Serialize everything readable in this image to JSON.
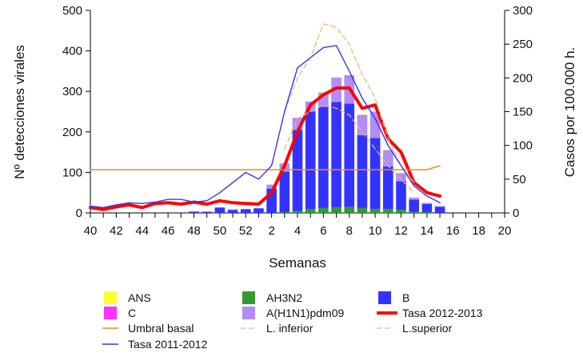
{
  "chart_data": {
    "type": "bar+line",
    "xlabel": "Semanas",
    "ylabel_left": "Nº detecciones virales",
    "ylabel_right": "Casos por 100.000 h.",
    "ylim_left": [
      0,
      500
    ],
    "ylim_right": [
      0,
      300
    ],
    "yticks_left": [
      0,
      100,
      200,
      300,
      400,
      500
    ],
    "yticks_right": [
      0,
      50,
      100,
      150,
      200,
      250,
      300
    ],
    "x_weeks": [
      "40",
      "41",
      "42",
      "43",
      "44",
      "45",
      "46",
      "47",
      "48",
      "49",
      "50",
      "51",
      "52",
      "1",
      "2",
      "3",
      "4",
      "5",
      "6",
      "7",
      "8",
      "9",
      "10",
      "11",
      "12",
      "13",
      "14",
      "15",
      "16",
      "17",
      "18",
      "19",
      "20"
    ],
    "x_tick_labels": [
      "40",
      "42",
      "44",
      "46",
      "48",
      "50",
      "52",
      "2",
      "4",
      "6",
      "8",
      "10",
      "12",
      "14",
      "16",
      "18",
      "20"
    ],
    "bar_series": [
      {
        "name": "ANS",
        "color": "#ffff33",
        "values": [
          0,
          0,
          0,
          0,
          0,
          0,
          0,
          0,
          0,
          0,
          0,
          0,
          0,
          0,
          0,
          0,
          0,
          1,
          1,
          1,
          1,
          1,
          1,
          1,
          1,
          0,
          0,
          0,
          0,
          0,
          0,
          0,
          0
        ]
      },
      {
        "name": "C",
        "color": "#ff33ff",
        "values": [
          0,
          0,
          0,
          0,
          0,
          0,
          0,
          0,
          0,
          0,
          0,
          0,
          0,
          0,
          0,
          0,
          0,
          0,
          0,
          0,
          0,
          0,
          0,
          0,
          0,
          0,
          0,
          0,
          0,
          0,
          0,
          0,
          0
        ]
      },
      {
        "name": "AH3N2",
        "color": "#339933",
        "values": [
          0,
          0,
          0,
          0,
          0,
          0,
          0,
          0,
          0,
          0,
          0,
          0,
          0,
          0,
          0,
          2,
          5,
          10,
          12,
          14,
          15,
          12,
          10,
          10,
          8,
          3,
          2,
          0,
          0,
          0,
          0,
          0,
          0
        ]
      },
      {
        "name": "A(H1N1)pdm09",
        "color": "#b08ef5",
        "values": [
          0,
          0,
          0,
          0,
          0,
          0,
          0,
          0,
          1,
          0,
          1,
          2,
          1,
          1,
          10,
          20,
          30,
          25,
          35,
          60,
          70,
          50,
          65,
          40,
          20,
          5,
          3,
          2,
          0,
          0,
          0,
          0,
          0
        ]
      },
      {
        "name": "B",
        "color": "#3333ff",
        "values": [
          0,
          0,
          0,
          0,
          0,
          0,
          0,
          0,
          3,
          3,
          13,
          7,
          9,
          11,
          60,
          100,
          200,
          240,
          250,
          260,
          255,
          180,
          175,
          105,
          70,
          30,
          20,
          15,
          0,
          0,
          0,
          0,
          0
        ]
      }
    ],
    "line_series": [
      {
        "name": "Tasa 2012-2013",
        "color": "#ff0000",
        "axis": "right",
        "values": [
          8,
          5,
          9,
          12,
          8,
          14,
          15,
          13,
          16,
          13,
          18,
          15,
          14,
          13,
          30,
          70,
          120,
          160,
          175,
          185,
          185,
          155,
          160,
          110,
          90,
          45,
          30,
          25,
          null,
          null,
          null,
          null,
          null
        ]
      },
      {
        "name": "Umbral basal",
        "color": "#f28c1c",
        "axis": "right",
        "values": [
          64,
          64,
          64,
          64,
          64,
          64,
          64,
          64,
          64,
          64,
          64,
          64,
          64,
          64,
          64,
          64,
          64,
          64,
          64,
          64,
          64,
          64,
          64,
          64,
          64,
          64,
          64,
          70,
          null,
          null,
          null,
          null,
          null
        ]
      },
      {
        "name": "L. inferior",
        "color": "#f2b27a",
        "axis": "right",
        "values": [
          null,
          null,
          null,
          null,
          null,
          null,
          null,
          null,
          null,
          null,
          null,
          null,
          null,
          null,
          null,
          95,
          140,
          150,
          160,
          155,
          145,
          120,
          95,
          70,
          50,
          30,
          null,
          null,
          null,
          null,
          null,
          null,
          null
        ]
      },
      {
        "name": "L.superior",
        "color": "#f2b27a",
        "axis": "right",
        "values": [
          null,
          null,
          null,
          null,
          null,
          null,
          null,
          null,
          null,
          null,
          null,
          null,
          null,
          null,
          null,
          150,
          200,
          230,
          280,
          275,
          250,
          205,
          170,
          110,
          70,
          45,
          null,
          null,
          null,
          null,
          null,
          null,
          null
        ]
      },
      {
        "name": "Tasa 2011-2012",
        "color": "#3333ff",
        "axis": "right",
        "values": [
          10,
          8,
          12,
          15,
          14,
          16,
          20,
          20,
          16,
          18,
          30,
          45,
          60,
          50,
          70,
          150,
          215,
          230,
          245,
          248,
          210,
          170,
          140,
          100,
          70,
          40,
          25,
          15,
          null,
          null,
          null,
          null,
          null
        ]
      }
    ],
    "legend": {
      "placement": "bottom",
      "columns": [
        [
          "ANS",
          "C",
          "Umbral basal",
          "Tasa 2011-2012"
        ],
        [
          "AH3N2",
          "A(H1N1)pdm09",
          "L. inferior"
        ],
        [
          "B",
          "Tasa 2012-2013",
          "L.superior"
        ]
      ],
      "styles": {
        "ANS": "box",
        "C": "box",
        "AH3N2": "box",
        "A(H1N1)pdm09": "box",
        "B": "box",
        "Umbral basal": "line",
        "Tasa 2011-2012": "line",
        "Tasa 2012-2013": "thickline",
        "L. inferior": "dash",
        "L.superior": "dash"
      }
    }
  }
}
